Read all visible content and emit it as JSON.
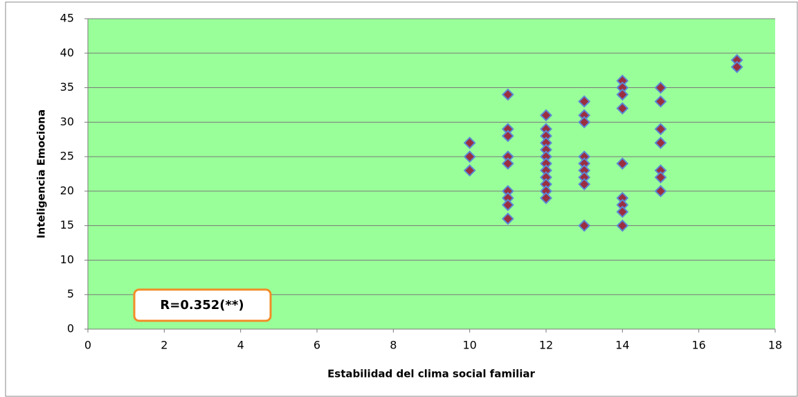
{
  "chart_data": {
    "type": "scatter",
    "x_label": "Estabilidad del clima social familiar",
    "y_label": "Inteligencia Emociona",
    "annotation": "R=0.352(**)",
    "x": [
      10,
      10,
      10,
      11,
      11,
      11,
      11,
      11,
      11,
      11,
      11,
      11,
      12,
      12,
      12,
      12,
      12,
      12,
      12,
      12,
      12,
      12,
      12,
      12,
      13,
      13,
      13,
      13,
      13,
      13,
      13,
      13,
      13,
      14,
      14,
      14,
      14,
      14,
      14,
      14,
      14,
      14,
      15,
      15,
      15,
      15,
      15,
      15,
      15,
      17,
      17
    ],
    "values": [
      27,
      25,
      23,
      34,
      29,
      28,
      25,
      24,
      20,
      19,
      18,
      16,
      31,
      29,
      28,
      27,
      26,
      25,
      24,
      23,
      22,
      21,
      20,
      19,
      33,
      31,
      30,
      25,
      24,
      23,
      22,
      21,
      15,
      36,
      35,
      34,
      32,
      24,
      19,
      18,
      17,
      15,
      35,
      33,
      29,
      27,
      23,
      22,
      20,
      39,
      38
    ],
    "xlim": [
      0,
      18
    ],
    "xticks": [
      0,
      2,
      4,
      6,
      8,
      10,
      12,
      14,
      16,
      18
    ],
    "ylim": [
      0,
      45
    ],
    "yticks": [
      0,
      5,
      10,
      15,
      20,
      25,
      30,
      35,
      40,
      45
    ],
    "grid": true,
    "plot_background": "#99ff99",
    "marker_color": "#9b2f3f",
    "marker_edge_color": "#5b86d6",
    "annotation_border_color": "#f28c28"
  }
}
